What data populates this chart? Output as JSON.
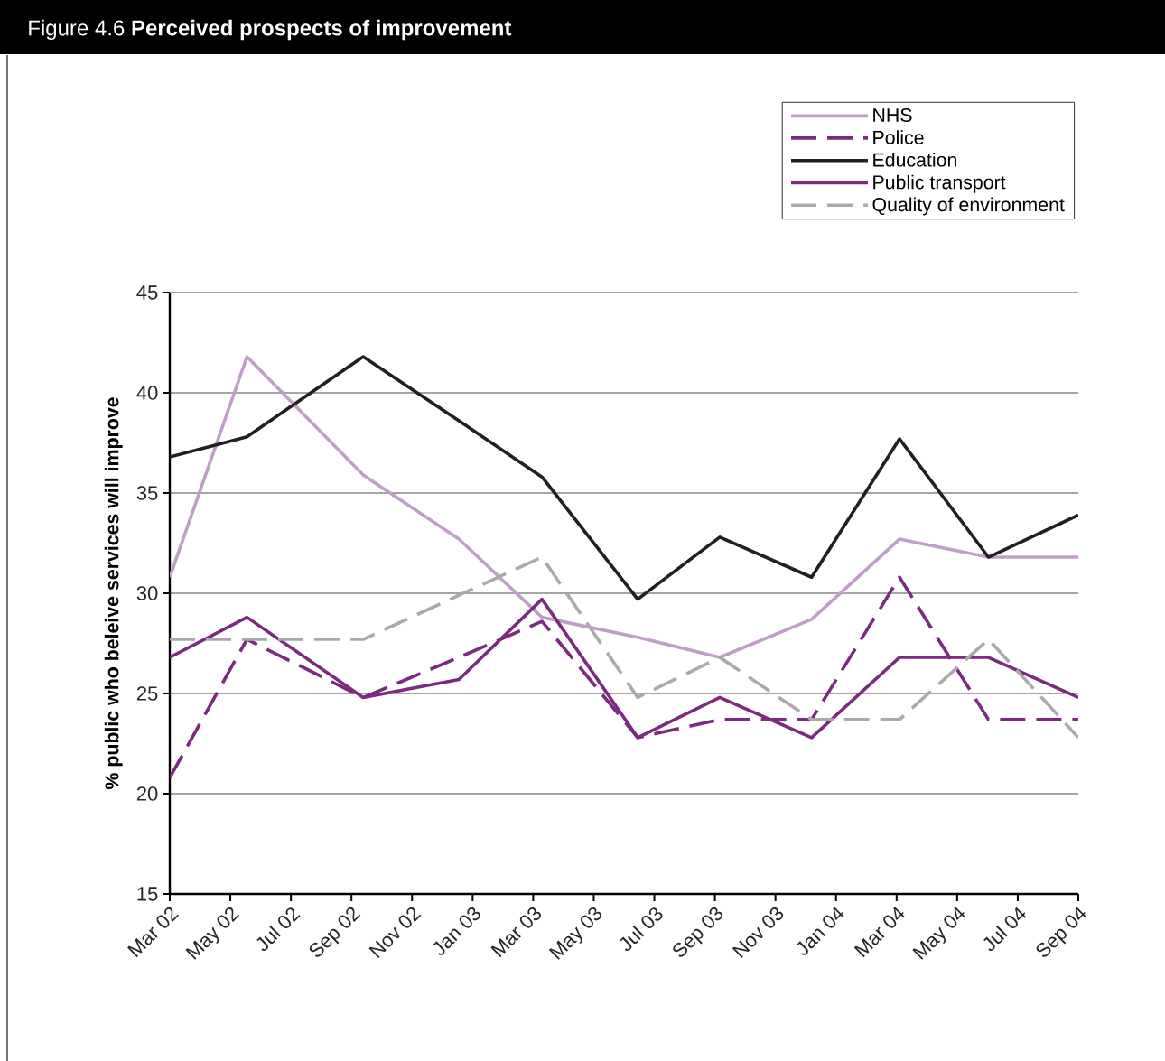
{
  "chart_data": {
    "type": "line",
    "title": "Figure 4.6  **Perceived prospects of improvement**",
    "ylabel": "% public who beleive services will improve",
    "x": [
      "2002-03-01",
      "2002-05-18",
      "2002-09-13",
      "2002-12-18",
      "2003-03-10",
      "2003-06-15",
      "2003-09-06",
      "2003-12-07",
      "2004-03-04",
      "2004-06-02",
      "2004-09-01"
    ],
    "series": [
      {
        "name": "NHS",
        "color": "#c09ec8",
        "line_style": "solid",
        "values": [
          30.8,
          41.8,
          35.9,
          32.7,
          28.8,
          27.8,
          26.8,
          28.7,
          32.7,
          31.8,
          31.8
        ]
      },
      {
        "name": "Police",
        "color": "#7b2a80",
        "line_style": "dashed",
        "values": [
          20.8,
          27.7,
          24.8,
          26.8,
          28.6,
          22.8,
          23.7,
          23.7,
          30.8,
          23.7,
          23.7
        ]
      },
      {
        "name": "Education",
        "color": "#231f20",
        "line_style": "solid",
        "values": [
          36.8,
          37.8,
          41.8,
          38.6,
          35.8,
          29.7,
          32.8,
          30.8,
          37.7,
          31.8,
          33.9
        ]
      },
      {
        "name": "Public transport",
        "color": "#7b2a80",
        "line_style": "solid",
        "values": [
          26.8,
          28.8,
          24.8,
          25.7,
          29.7,
          22.8,
          24.8,
          22.8,
          26.8,
          26.8,
          24.8
        ]
      },
      {
        "name": "Quality of environment",
        "color": "#aaaaaa",
        "line_style": "dashed",
        "values": [
          27.7,
          27.7,
          27.7,
          29.9,
          31.8,
          24.8,
          26.8,
          23.7,
          23.7,
          27.7,
          22.8
        ]
      }
    ],
    "xlim": [
      "2002-03",
      "2004-09"
    ],
    "xticks": [
      {
        "value": "2002-03",
        "label": "Mar 02"
      },
      {
        "value": "2002-05",
        "label": "May 02"
      },
      {
        "value": "2002-07",
        "label": "Jul 02"
      },
      {
        "value": "2002-09",
        "label": "Sep 02"
      },
      {
        "value": "2002-11",
        "label": "Nov 02"
      },
      {
        "value": "2003-01",
        "label": "Jan 03"
      },
      {
        "value": "2003-03",
        "label": "Mar 03"
      },
      {
        "value": "2003-05",
        "label": "May 03"
      },
      {
        "value": "2003-07",
        "label": "Jul 03"
      },
      {
        "value": "2003-09",
        "label": "Sep 03"
      },
      {
        "value": "2003-11",
        "label": "Nov 03"
      },
      {
        "value": "2004-01",
        "label": "Jan 04"
      },
      {
        "value": "2004-03",
        "label": "Mar 04"
      },
      {
        "value": "2004-05",
        "label": "May 04"
      },
      {
        "value": "2004-07",
        "label": "Jul 04"
      },
      {
        "value": "2004-09",
        "label": "Sep 04"
      }
    ],
    "ylim": [
      15,
      45
    ],
    "yticks": [
      15,
      20,
      25,
      30,
      35,
      40,
      45
    ],
    "grid": "y",
    "legend": "top right"
  }
}
